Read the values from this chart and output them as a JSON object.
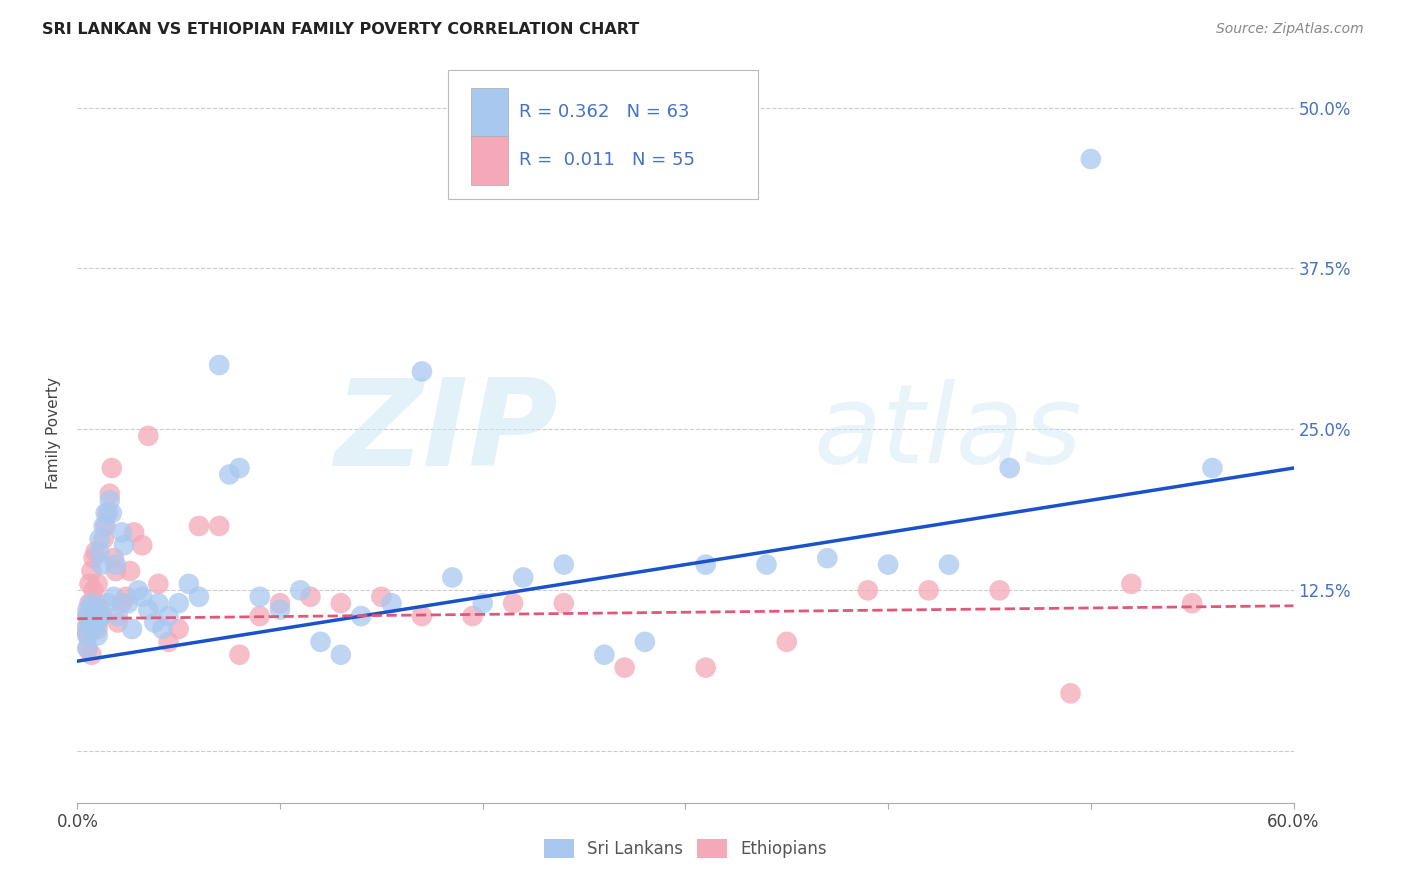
{
  "title": "SRI LANKAN VS ETHIOPIAN FAMILY POVERTY CORRELATION CHART",
  "source": "Source: ZipAtlas.com",
  "ylabel": "Family Poverty",
  "yticks": [
    0.0,
    0.125,
    0.25,
    0.375,
    0.5
  ],
  "ytick_labels": [
    "",
    "12.5%",
    "25.0%",
    "37.5%",
    "50.0%"
  ],
  "xmin": 0.0,
  "xmax": 0.6,
  "ymin": -0.04,
  "ymax": 0.535,
  "watermark_zip": "ZIP",
  "watermark_atlas": "atlas",
  "sri_lankan_color": "#a8c8f0",
  "ethiopian_color": "#f4a8b8",
  "blue_line_color": "#1a52cc",
  "pink_line_color": "#e05878",
  "sri_lankans_x": [
    0.005,
    0.005,
    0.005,
    0.005,
    0.005,
    0.007,
    0.007,
    0.008,
    0.008,
    0.009,
    0.01,
    0.01,
    0.011,
    0.011,
    0.012,
    0.012,
    0.013,
    0.014,
    0.015,
    0.016,
    0.017,
    0.018,
    0.019,
    0.02,
    0.022,
    0.023,
    0.025,
    0.027,
    0.03,
    0.032,
    0.035,
    0.038,
    0.04,
    0.042,
    0.045,
    0.05,
    0.055,
    0.06,
    0.07,
    0.075,
    0.08,
    0.09,
    0.1,
    0.11,
    0.12,
    0.13,
    0.14,
    0.155,
    0.17,
    0.185,
    0.2,
    0.22,
    0.24,
    0.26,
    0.28,
    0.31,
    0.34,
    0.37,
    0.4,
    0.43,
    0.46,
    0.5,
    0.56
  ],
  "sri_lankans_y": [
    0.095,
    0.105,
    0.09,
    0.08,
    0.11,
    0.1,
    0.115,
    0.095,
    0.105,
    0.11,
    0.09,
    0.1,
    0.155,
    0.165,
    0.145,
    0.105,
    0.175,
    0.185,
    0.115,
    0.195,
    0.185,
    0.12,
    0.145,
    0.105,
    0.17,
    0.16,
    0.115,
    0.095,
    0.125,
    0.12,
    0.11,
    0.1,
    0.115,
    0.095,
    0.105,
    0.115,
    0.13,
    0.12,
    0.3,
    0.215,
    0.22,
    0.12,
    0.11,
    0.125,
    0.085,
    0.075,
    0.105,
    0.115,
    0.295,
    0.135,
    0.115,
    0.135,
    0.145,
    0.075,
    0.085,
    0.145,
    0.145,
    0.15,
    0.145,
    0.145,
    0.22,
    0.46,
    0.22
  ],
  "ethiopians_x": [
    0.004,
    0.005,
    0.005,
    0.005,
    0.006,
    0.006,
    0.006,
    0.007,
    0.007,
    0.008,
    0.008,
    0.009,
    0.009,
    0.01,
    0.01,
    0.011,
    0.012,
    0.013,
    0.014,
    0.015,
    0.016,
    0.017,
    0.018,
    0.019,
    0.02,
    0.022,
    0.024,
    0.026,
    0.028,
    0.032,
    0.035,
    0.04,
    0.045,
    0.05,
    0.06,
    0.07,
    0.08,
    0.09,
    0.1,
    0.115,
    0.13,
    0.15,
    0.17,
    0.195,
    0.215,
    0.24,
    0.27,
    0.31,
    0.35,
    0.39,
    0.42,
    0.455,
    0.49,
    0.52,
    0.55
  ],
  "ethiopians_y": [
    0.095,
    0.09,
    0.105,
    0.08,
    0.115,
    0.13,
    0.1,
    0.075,
    0.14,
    0.15,
    0.125,
    0.115,
    0.155,
    0.13,
    0.095,
    0.11,
    0.105,
    0.165,
    0.175,
    0.185,
    0.2,
    0.22,
    0.15,
    0.14,
    0.1,
    0.115,
    0.12,
    0.14,
    0.17,
    0.16,
    0.245,
    0.13,
    0.085,
    0.095,
    0.175,
    0.175,
    0.075,
    0.105,
    0.115,
    0.12,
    0.115,
    0.12,
    0.105,
    0.105,
    0.115,
    0.115,
    0.065,
    0.065,
    0.085,
    0.125,
    0.125,
    0.125,
    0.045,
    0.13,
    0.115
  ],
  "blue_line_x": [
    0.0,
    0.6
  ],
  "blue_line_y": [
    0.07,
    0.22
  ],
  "pink_line_x": [
    0.0,
    0.6
  ],
  "pink_line_y": [
    0.103,
    0.113
  ],
  "legend_r1_label": "R = 0.362",
  "legend_n1_label": "N = 63",
  "legend_r2_label": "R =  0.011",
  "legend_n2_label": "N = 55"
}
